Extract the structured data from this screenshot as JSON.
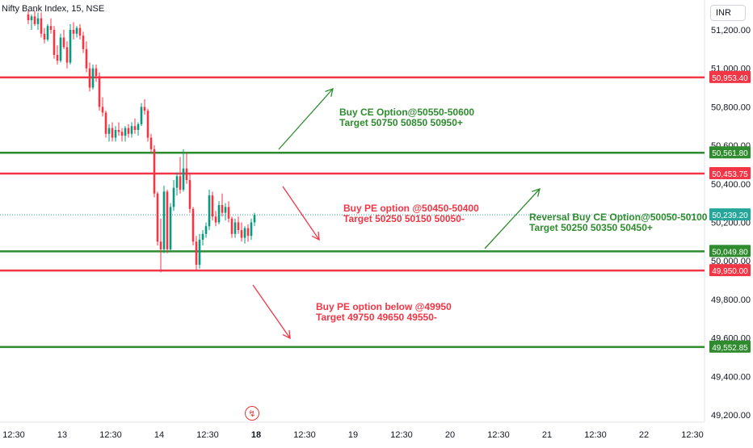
{
  "chart_data": {
    "type": "candlestick",
    "title": "Nifty Bank Index, 15, NSE",
    "currency": "INR",
    "ylim": [
      49180,
      51300
    ],
    "y_ticks": [
      {
        "value": 51200,
        "label": "51,200.00"
      },
      {
        "value": 51000,
        "label": "51,000.00"
      },
      {
        "value": 50800,
        "label": "50,800.00"
      },
      {
        "value": 50600,
        "label": "50,600.00"
      },
      {
        "value": 50400,
        "label": "50,400.00"
      },
      {
        "value": 50200,
        "label": "50,200.00"
      },
      {
        "value": 50000,
        "label": "50,000.00"
      },
      {
        "value": 49800,
        "label": "49,800.00"
      },
      {
        "value": 49600,
        "label": "49,600.00"
      },
      {
        "value": 49400,
        "label": "49,400.00"
      },
      {
        "value": 49200,
        "label": "49,200.00"
      }
    ],
    "x_ticks": [
      {
        "label": "12:30",
        "bold": false
      },
      {
        "label": "13",
        "bold": false
      },
      {
        "label": "12:30",
        "bold": false
      },
      {
        "label": "14",
        "bold": false
      },
      {
        "label": "12:30",
        "bold": false
      },
      {
        "label": "18",
        "bold": true
      },
      {
        "label": "12:30",
        "bold": false
      },
      {
        "label": "19",
        "bold": false
      },
      {
        "label": "12:30",
        "bold": false
      },
      {
        "label": "20",
        "bold": false
      },
      {
        "label": "12:30",
        "bold": false
      },
      {
        "label": "21",
        "bold": false
      },
      {
        "label": "12:30",
        "bold": false
      },
      {
        "label": "22",
        "bold": false
      },
      {
        "label": "12:30",
        "bold": false
      }
    ],
    "levels": [
      {
        "value": 50953.4,
        "label": "50,953.40",
        "color": "#f23645"
      },
      {
        "value": 50561.8,
        "label": "50,561.80",
        "color": "#2e8b2e"
      },
      {
        "value": 50453.75,
        "label": "50,453.75",
        "color": "#f23645"
      },
      {
        "value": 50049.8,
        "label": "50,049.80",
        "color": "#2e8b2e"
      },
      {
        "value": 49950.0,
        "label": "49,950.00",
        "color": "#f23645"
      },
      {
        "value": 49552.85,
        "label": "49,552.85",
        "color": "#2e8b2e"
      }
    ],
    "current_price": {
      "value": 50239.2,
      "label": "50,239.20",
      "color": "#26a69a"
    },
    "candles": [
      [
        51280,
        51300,
        51230,
        51250
      ],
      [
        51250,
        51280,
        51200,
        51270
      ],
      [
        51270,
        51300,
        51220,
        51230
      ],
      [
        51230,
        51290,
        51200,
        51260
      ],
      [
        51260,
        51290,
        51160,
        51180
      ],
      [
        51180,
        51210,
        51130,
        51150
      ],
      [
        51150,
        51230,
        51140,
        51220
      ],
      [
        51220,
        51260,
        51180,
        51200
      ],
      [
        51200,
        51220,
        51050,
        51070
      ],
      [
        51070,
        51120,
        51020,
        51040
      ],
      [
        51040,
        51180,
        51030,
        51160
      ],
      [
        51160,
        51200,
        51100,
        51110
      ],
      [
        51110,
        51140,
        51000,
        51030
      ],
      [
        51030,
        51230,
        51020,
        51200
      ],
      [
        51200,
        51240,
        51150,
        51180
      ],
      [
        51180,
        51220,
        51160,
        51210
      ],
      [
        51210,
        51230,
        51150,
        51170
      ],
      [
        51170,
        51190,
        51080,
        51100
      ],
      [
        51100,
        51140,
        50980,
        51000
      ],
      [
        51000,
        51030,
        50880,
        50900
      ],
      [
        50900,
        51020,
        50890,
        51000
      ],
      [
        51000,
        51020,
        50930,
        50960
      ],
      [
        50960,
        50980,
        50780,
        50800
      ],
      [
        50800,
        50850,
        50750,
        50770
      ],
      [
        50770,
        50780,
        50640,
        50660
      ],
      [
        50660,
        50710,
        50620,
        50690
      ],
      [
        50690,
        50720,
        50620,
        50640
      ],
      [
        50640,
        50700,
        50620,
        50680
      ],
      [
        50680,
        50720,
        50650,
        50670
      ],
      [
        50670,
        50690,
        50620,
        50650
      ],
      [
        50650,
        50700,
        50620,
        50690
      ],
      [
        50690,
        50710,
        50640,
        50660
      ],
      [
        50660,
        50720,
        50640,
        50700
      ],
      [
        50700,
        50740,
        50660,
        50680
      ],
      [
        50680,
        50720,
        50650,
        50710
      ],
      [
        50710,
        50820,
        50700,
        50800
      ],
      [
        50800,
        50840,
        50760,
        50780
      ],
      [
        50780,
        50790,
        50620,
        50640
      ],
      [
        50640,
        50660,
        50560,
        50580
      ],
      [
        50580,
        50600,
        50330,
        50350
      ],
      [
        50350,
        50360,
        50080,
        50100
      ],
      [
        50100,
        50220,
        49940,
        50060
      ],
      [
        50060,
        50390,
        50040,
        50360
      ],
      [
        50360,
        50370,
        50040,
        50060
      ],
      [
        50060,
        50300,
        50050,
        50280
      ],
      [
        50280,
        50420,
        50260,
        50380
      ],
      [
        50380,
        50460,
        50340,
        50440
      ],
      [
        50440,
        50540,
        50350,
        50370
      ],
      [
        50370,
        50580,
        50360,
        50480
      ],
      [
        50480,
        50560,
        50400,
        50420
      ],
      [
        50420,
        50450,
        50250,
        50270
      ],
      [
        50270,
        50280,
        50080,
        50100
      ],
      [
        50100,
        50130,
        49950,
        49980
      ],
      [
        49980,
        50140,
        49960,
        50110
      ],
      [
        50110,
        50160,
        50080,
        50140
      ],
      [
        50140,
        50200,
        50120,
        50180
      ],
      [
        50180,
        50370,
        50160,
        50340
      ],
      [
        50340,
        50360,
        50210,
        50230
      ],
      [
        50230,
        50260,
        50180,
        50200
      ],
      [
        50200,
        50310,
        50190,
        50290
      ],
      [
        50290,
        50350,
        50230,
        50250
      ],
      [
        50250,
        50300,
        50210,
        50280
      ],
      [
        50280,
        50310,
        50200,
        50220
      ],
      [
        50220,
        50230,
        50120,
        50140
      ],
      [
        50140,
        50220,
        50120,
        50200
      ],
      [
        50200,
        50230,
        50140,
        50160
      ],
      [
        50160,
        50200,
        50100,
        50120
      ],
      [
        50120,
        50180,
        50090,
        50170
      ],
      [
        50170,
        50190,
        50100,
        50130
      ],
      [
        50130,
        50220,
        50110,
        50200
      ],
      [
        50200,
        50250,
        50180,
        50239
      ]
    ],
    "colors": {
      "up": "#089981",
      "down": "#f23645",
      "level_red": "#f23645",
      "level_green": "#2e8b2e"
    }
  },
  "annotations": [
    {
      "lines": [
        "Buy CE Option@50550-50600",
        "Target 50750 50850 50950+"
      ],
      "color": "#2e8b2e"
    },
    {
      "lines": [
        "Buy PE option @50450-50400",
        "Target 50250 50150 50050-"
      ],
      "color": "#f23645"
    },
    {
      "lines": [
        "Reversal Buy CE Option@50050-50100",
        "Target 50250 50350 50450+"
      ],
      "color": "#2e8b2e"
    },
    {
      "lines": [
        "Buy PE option below @49950",
        "Target 49750 49650 49550-"
      ],
      "color": "#f23645"
    }
  ],
  "event_icon": "flash-icon"
}
